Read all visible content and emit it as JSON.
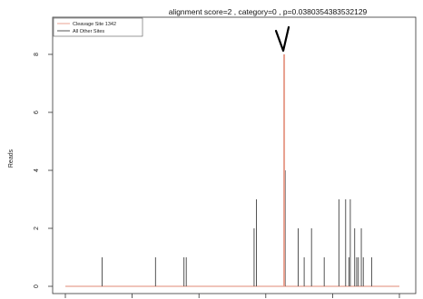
{
  "chart_data": {
    "type": "bar",
    "title": "alignment score=2 , category=0 , p=0.0380354383532129",
    "xlabel": "",
    "ylabel": "Reads",
    "ylim": [
      0,
      9
    ],
    "yticks": [
      0,
      2,
      4,
      6,
      8
    ],
    "xlim": [
      0,
      1
    ],
    "grid": false,
    "legend_position": "top-left",
    "colors": {
      "cleavage": "#e8a090",
      "other": "#555555",
      "frame": "#333333"
    },
    "series": [
      {
        "name": "Cleavage Site 1342",
        "x": [
          0.0,
          0.655
        ],
        "values": [
          0,
          8
        ]
      },
      {
        "name": "All Other Sites",
        "x": [
          0.11,
          0.27,
          0.355,
          0.362,
          0.565,
          0.572,
          0.658,
          0.697,
          0.715,
          0.737,
          0.775,
          0.819,
          0.839,
          0.849,
          0.853,
          0.866,
          0.872,
          0.877,
          0.886,
          0.892,
          0.917
        ],
        "values": [
          1,
          1,
          1,
          1,
          2,
          3,
          4,
          2,
          1,
          2,
          1,
          3,
          3,
          1,
          3,
          2,
          1,
          1,
          2,
          1,
          1
        ]
      }
    ]
  },
  "legend": {
    "items": [
      {
        "label": "Cleavage Site 1342",
        "color": "#e8a090"
      },
      {
        "label": "All Other Sites",
        "color": "#555555"
      }
    ]
  },
  "annotation": {
    "icon": "arrow-down-icon",
    "target_x": 0.655
  }
}
